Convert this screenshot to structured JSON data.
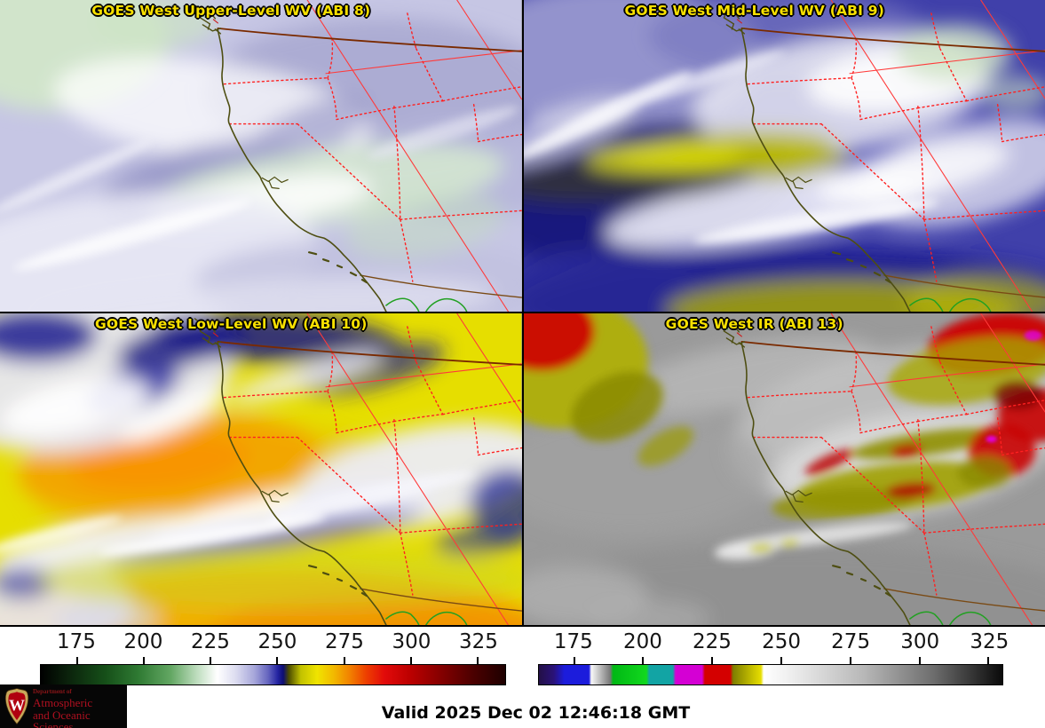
{
  "panels": [
    {
      "id": "abi8",
      "title": "GOES West Upper-Level WV (ABI 8)"
    },
    {
      "id": "abi9",
      "title": "GOES West Mid-Level WV (ABI 9)"
    },
    {
      "id": "abi10",
      "title": "GOES West Low-Level WV (ABI 10)"
    },
    {
      "id": "abi13",
      "title": "GOES West IR (ABI 13)"
    }
  ],
  "colorbars": [
    {
      "id": "wv-temperature-scale",
      "ticks": [
        "175",
        "200",
        "225",
        "250",
        "275",
        "300",
        "325"
      ]
    },
    {
      "id": "ir-temperature-scale",
      "ticks": [
        "175",
        "200",
        "225",
        "250",
        "275",
        "300",
        "325"
      ]
    }
  ],
  "logo": {
    "line1": "Department of",
    "line2": "Atmospheric",
    "line3": "and Oceanic Sciences",
    "crest_letter": "W"
  },
  "footer": {
    "valid_time": "Valid 2025 Dec 02 12:46:18 GMT"
  },
  "colors": {
    "title_yellow": "#f8e000",
    "logo_red": "#b01020"
  }
}
